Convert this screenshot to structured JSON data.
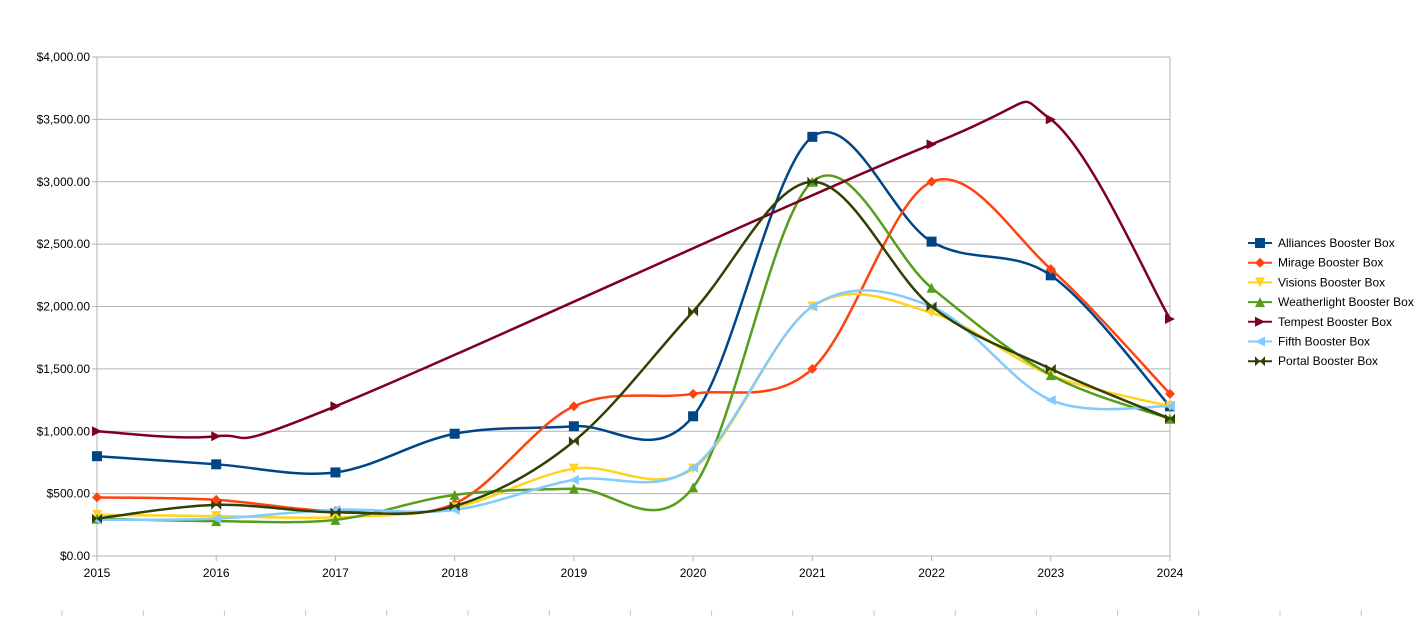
{
  "chart_data": {
    "type": "line",
    "title": "",
    "xlabel": "",
    "ylabel": "",
    "ylim": [
      0,
      4000
    ],
    "y_tick_step": 500,
    "grid": true,
    "smooth": true,
    "legend_position": "right",
    "x": [
      "2015",
      "2016",
      "2017",
      "2018",
      "2019",
      "2020",
      "2021",
      "2022",
      "2023",
      "2024"
    ],
    "y_tick_labels": [
      "$0.00",
      "$500.00",
      "$1,000.00",
      "$1,500.00",
      "$2,000.00",
      "$2,500.00",
      "$3,000.00",
      "$3,500.00",
      "$4,000.00"
    ],
    "series": [
      {
        "name": "Alliances Booster Box",
        "color": "#004586",
        "marker": "square",
        "values": [
          800,
          735,
          670,
          980,
          1040,
          1120,
          3360,
          2520,
          2250,
          1200
        ]
      },
      {
        "name": "Mirage Booster Box",
        "color": "#ff420e",
        "marker": "diamond",
        "values": [
          470,
          450,
          360,
          420,
          1200,
          1300,
          1500,
          3000,
          2300,
          1300
        ]
      },
      {
        "name": "Visions Booster Box",
        "color": "#ffd320",
        "marker": "triangle-down",
        "values": [
          330,
          320,
          310,
          390,
          700,
          700,
          2000,
          1950,
          1450,
          1200
        ]
      },
      {
        "name": "Weatherlight Booster Box",
        "color": "#579d1c",
        "marker": "triangle-up",
        "values": [
          300,
          280,
          290,
          490,
          540,
          550,
          3000,
          2150,
          1450,
          1100
        ]
      },
      {
        "name": "Tempest Booster Box",
        "color": "#7e0021",
        "marker": "triangle-right",
        "values": [
          1000,
          960,
          1200,
          null,
          null,
          null,
          null,
          3300,
          3500,
          1900
        ]
      },
      {
        "name": "Fifth Booster Box",
        "color": "#83caff",
        "marker": "triangle-left",
        "values": [
          290,
          300,
          370,
          370,
          610,
          710,
          2000,
          2000,
          1250,
          1200
        ]
      },
      {
        "name": "Portal Booster Box",
        "color": "#314004",
        "marker": "bowtie",
        "values": [
          300,
          410,
          350,
          400,
          920,
          1960,
          3000,
          2000,
          1500,
          1100
        ]
      }
    ]
  }
}
